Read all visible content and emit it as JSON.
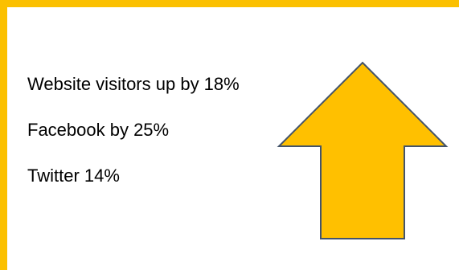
{
  "colors": {
    "accent": "#fbc000",
    "arrow_fill": "#ffc000",
    "arrow_stroke": "#44546a"
  },
  "icon": "up-arrow",
  "stats": {
    "line1": "Website visitors up by 18%",
    "line2": "Facebook by 25%",
    "line3": "Twitter 14%"
  }
}
